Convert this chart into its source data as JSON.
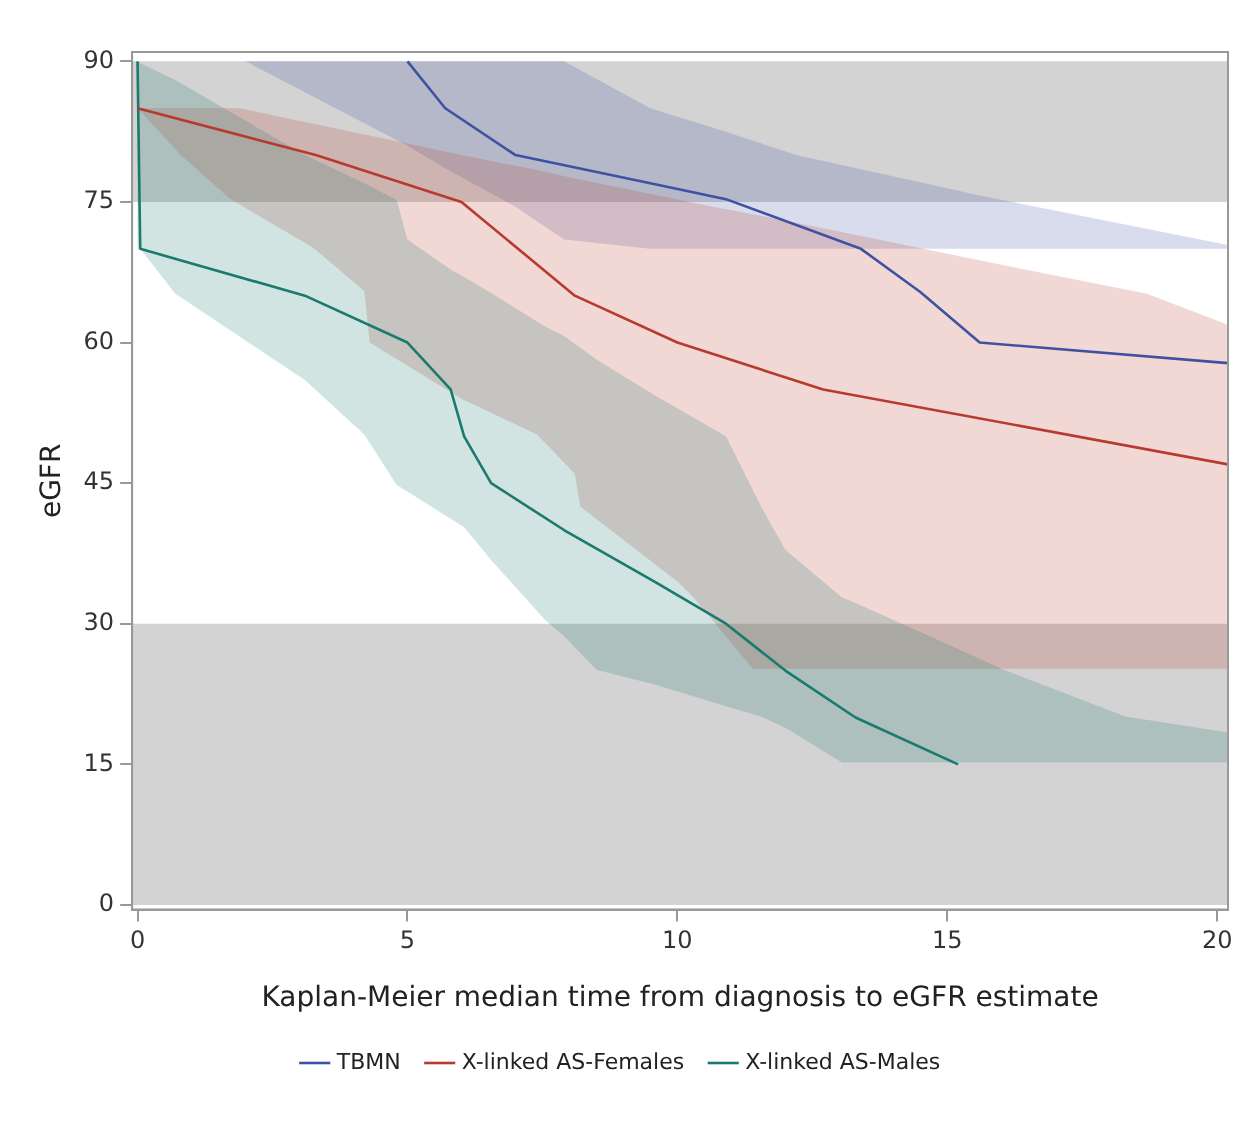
{
  "chart_data": {
    "type": "line",
    "xlabel": "Kaplan-Meier median time from diagnosis to eGFR estimate",
    "ylabel": "eGFR",
    "xlim": [
      -0.1,
      20.2
    ],
    "xticks": [
      0,
      5,
      10,
      15,
      20
    ],
    "ylim": [
      -0.5,
      91
    ],
    "yticks": [
      0,
      15,
      30,
      45,
      60,
      75,
      90
    ],
    "grid": false,
    "legend": "bottom",
    "marker": "none",
    "line_style": "solid",
    "bands": [
      {
        "axis": "y",
        "from": 75,
        "to": 90,
        "color": "#d3d3d3"
      },
      {
        "axis": "y",
        "from": 0,
        "to": 30,
        "color": "#d3d3d3"
      }
    ],
    "series": [
      {
        "name": "TBMN",
        "color": "#3f51a3",
        "x": [
          2,
          5,
          5.7,
          7,
          7.9,
          9.5,
          10.9,
          12.2,
          13.4,
          14.5,
          15.6,
          20.2
        ],
        "values": [
          null,
          90,
          85,
          80,
          null,
          77,
          75.3,
          null,
          70,
          65.4,
          60,
          57.8
        ],
        "upper": [
          90,
          90,
          90,
          90,
          90,
          85,
          82.5,
          80,
          78.5,
          77.1,
          75.7,
          70.4
        ],
        "lower": [
          90,
          81,
          78.6,
          74.5,
          71,
          70,
          70,
          70,
          70,
          70,
          70,
          70
        ]
      },
      {
        "name": "X-linked AS-Females",
        "color": "#b83a2e",
        "x": [
          0,
          0.8,
          1.7,
          1.9,
          3.2,
          3.3,
          4.2,
          4.3,
          6,
          7.4,
          8.1,
          8.2,
          9.55,
          10,
          10.3,
          11.4,
          12.7,
          16,
          18.7,
          20.2
        ],
        "values": [
          85,
          null,
          null,
          null,
          null,
          80,
          null,
          null,
          75,
          null,
          65,
          null,
          null,
          60,
          null,
          null,
          55,
          null,
          null,
          47
        ],
        "upper": [
          85,
          85,
          85,
          85,
          83.4,
          83.3,
          82.2,
          82.1,
          80,
          78.4,
          77.5,
          77.4,
          75.8,
          75.3,
          74.9,
          73.7,
          72.2,
          68.3,
          65.2,
          61.9
        ],
        "lower": [
          85,
          80,
          75.4,
          74.7,
          70.3,
          69.9,
          65.5,
          60,
          54,
          50.2,
          46,
          42.5,
          36.5,
          34.5,
          32.8,
          25.2,
          25.2,
          25.2,
          25.2,
          25.2
        ]
      },
      {
        "name": "X-linked AS-Males",
        "color": "#1a7a6e",
        "x": [
          0,
          0.05,
          0.7,
          3.1,
          4.2,
          4.8,
          5,
          5.8,
          6.05,
          6.55,
          7.55,
          7.9,
          8.5,
          9.6,
          10.9,
          11.55,
          12,
          13.05,
          13.3,
          15.2,
          16,
          18.3,
          20.2
        ],
        "values": [
          90,
          70,
          null,
          65,
          null,
          null,
          60,
          55,
          50,
          45,
          null,
          40,
          null,
          34.4,
          30,
          null,
          25,
          null,
          20,
          15,
          null,
          null,
          null
        ],
        "upper": [
          90,
          89.8,
          88,
          80,
          77,
          75.2,
          71,
          67.8,
          67,
          65.3,
          61.7,
          60.7,
          58.2,
          54.3,
          50,
          42.5,
          37.9,
          32.8,
          32.2,
          27.3,
          25.2,
          20.1,
          18.4
        ],
        "lower": [
          70,
          70,
          65.2,
          56,
          50.2,
          44.8,
          44.1,
          41.2,
          40.3,
          36.8,
          30.4,
          28.7,
          25.1,
          23.5,
          21.2,
          20.1,
          18.9,
          15.2,
          15.2,
          15.2,
          15.2,
          15.2,
          15.2
        ]
      }
    ]
  }
}
